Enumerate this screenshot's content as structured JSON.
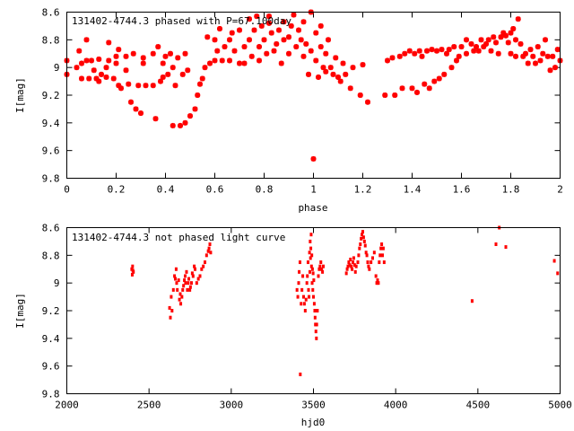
{
  "chart_data": [
    {
      "type": "scatter",
      "title": "131402-4744.3 phased with P=67.100day",
      "xlabel": "phase",
      "ylabel": "I[mag]",
      "xlim": [
        0,
        2
      ],
      "ylim": [
        9.8,
        8.6
      ],
      "y_inverted": true,
      "xticks": [
        "0",
        "0.2",
        "0.4",
        "0.6",
        "0.8",
        "1",
        "1.2",
        "1.4",
        "1.6",
        "1.8",
        "2"
      ],
      "yticks": [
        "8.6",
        "8.8",
        "9",
        "9.2",
        "9.4",
        "9.6",
        "9.8"
      ],
      "marker_color": "#ff0000",
      "points": [
        [
          0.0,
          8.95
        ],
        [
          0.0,
          9.05
        ],
        [
          0.04,
          9.0
        ],
        [
          0.05,
          8.88
        ],
        [
          0.06,
          8.97
        ],
        [
          0.06,
          9.08
        ],
        [
          0.08,
          8.95
        ],
        [
          0.08,
          8.8
        ],
        [
          0.09,
          9.08
        ],
        [
          0.1,
          8.95
        ],
        [
          0.11,
          9.02
        ],
        [
          0.12,
          9.08
        ],
        [
          0.13,
          8.94
        ],
        [
          0.13,
          9.1
        ],
        [
          0.14,
          9.05
        ],
        [
          0.16,
          9.0
        ],
        [
          0.16,
          9.07
        ],
        [
          0.17,
          8.82
        ],
        [
          0.17,
          8.95
        ],
        [
          0.19,
          9.08
        ],
        [
          0.2,
          8.97
        ],
        [
          0.2,
          8.92
        ],
        [
          0.21,
          8.87
        ],
        [
          0.21,
          9.13
        ],
        [
          0.22,
          9.15
        ],
        [
          0.24,
          8.92
        ],
        [
          0.24,
          9.02
        ],
        [
          0.25,
          9.12
        ],
        [
          0.26,
          9.25
        ],
        [
          0.27,
          8.9
        ],
        [
          0.28,
          9.3
        ],
        [
          0.29,
          9.13
        ],
        [
          0.3,
          9.33
        ],
        [
          0.31,
          8.93
        ],
        [
          0.31,
          8.97
        ],
        [
          0.32,
          9.13
        ],
        [
          0.35,
          8.9
        ],
        [
          0.35,
          9.13
        ],
        [
          0.36,
          9.37
        ],
        [
          0.37,
          8.85
        ],
        [
          0.38,
          9.1
        ],
        [
          0.39,
          8.97
        ],
        [
          0.39,
          9.07
        ],
        [
          0.4,
          8.92
        ],
        [
          0.41,
          9.05
        ],
        [
          0.42,
          8.9
        ],
        [
          0.43,
          9.0
        ],
        [
          0.43,
          9.42
        ],
        [
          0.44,
          9.13
        ],
        [
          0.45,
          8.93
        ],
        [
          0.46,
          9.42
        ],
        [
          0.47,
          9.05
        ],
        [
          0.48,
          8.9
        ],
        [
          0.48,
          9.4
        ],
        [
          0.49,
          9.02
        ],
        [
          0.5,
          9.35
        ],
        [
          0.52,
          9.3
        ],
        [
          0.53,
          9.2
        ],
        [
          0.54,
          9.12
        ],
        [
          0.55,
          9.08
        ],
        [
          0.56,
          9.0
        ],
        [
          0.57,
          8.78
        ],
        [
          0.58,
          8.97
        ],
        [
          0.6,
          8.8
        ],
        [
          0.6,
          8.95
        ],
        [
          0.61,
          8.88
        ],
        [
          0.62,
          8.72
        ],
        [
          0.63,
          8.95
        ],
        [
          0.64,
          8.85
        ],
        [
          0.66,
          8.8
        ],
        [
          0.66,
          8.95
        ],
        [
          0.67,
          8.75
        ],
        [
          0.68,
          8.88
        ],
        [
          0.7,
          8.97
        ],
        [
          0.7,
          8.73
        ],
        [
          0.72,
          8.85
        ],
        [
          0.72,
          8.97
        ],
        [
          0.74,
          8.65
        ],
        [
          0.74,
          8.8
        ],
        [
          0.75,
          8.92
        ],
        [
          0.76,
          8.73
        ],
        [
          0.77,
          8.63
        ],
        [
          0.78,
          8.85
        ],
        [
          0.78,
          8.95
        ],
        [
          0.79,
          8.7
        ],
        [
          0.8,
          8.8
        ],
        [
          0.81,
          8.9
        ],
        [
          0.82,
          8.63
        ],
        [
          0.82,
          8.68
        ],
        [
          0.83,
          8.75
        ],
        [
          0.84,
          8.88
        ],
        [
          0.85,
          8.83
        ],
        [
          0.86,
          8.73
        ],
        [
          0.87,
          8.97
        ],
        [
          0.88,
          8.8
        ],
        [
          0.88,
          8.67
        ],
        [
          0.9,
          8.9
        ],
        [
          0.9,
          8.78
        ],
        [
          0.91,
          8.7
        ],
        [
          0.92,
          8.62
        ],
        [
          0.93,
          8.85
        ],
        [
          0.94,
          8.73
        ],
        [
          0.95,
          8.8
        ],
        [
          0.96,
          8.92
        ],
        [
          0.96,
          8.67
        ],
        [
          0.97,
          8.83
        ],
        [
          0.98,
          9.05
        ],
        [
          0.99,
          8.88
        ],
        [
          0.99,
          8.6
        ],
        [
          1.0,
          9.66
        ],
        [
          1.01,
          8.75
        ],
        [
          1.01,
          8.95
        ],
        [
          1.02,
          9.07
        ],
        [
          1.03,
          8.85
        ],
        [
          1.03,
          8.7
        ],
        [
          1.04,
          9.0
        ],
        [
          1.05,
          8.9
        ],
        [
          1.05,
          9.03
        ],
        [
          1.06,
          8.8
        ],
        [
          1.07,
          9.0
        ],
        [
          1.08,
          9.05
        ],
        [
          1.09,
          8.93
        ],
        [
          1.1,
          9.07
        ],
        [
          1.11,
          9.1
        ],
        [
          1.12,
          8.97
        ],
        [
          1.13,
          9.05
        ],
        [
          1.15,
          9.15
        ],
        [
          1.16,
          9.0
        ],
        [
          1.19,
          9.2
        ],
        [
          1.2,
          8.98
        ],
        [
          1.22,
          9.25
        ],
        [
          1.29,
          9.2
        ],
        [
          1.3,
          8.95
        ],
        [
          1.32,
          8.93
        ],
        [
          1.33,
          9.2
        ],
        [
          1.35,
          8.92
        ],
        [
          1.36,
          9.15
        ],
        [
          1.37,
          8.9
        ],
        [
          1.39,
          8.88
        ],
        [
          1.4,
          9.15
        ],
        [
          1.41,
          8.9
        ],
        [
          1.42,
          9.18
        ],
        [
          1.43,
          8.88
        ],
        [
          1.44,
          8.92
        ],
        [
          1.45,
          9.12
        ],
        [
          1.46,
          8.88
        ],
        [
          1.47,
          9.15
        ],
        [
          1.48,
          8.87
        ],
        [
          1.49,
          9.1
        ],
        [
          1.5,
          8.88
        ],
        [
          1.51,
          9.08
        ],
        [
          1.52,
          8.87
        ],
        [
          1.53,
          9.05
        ],
        [
          1.54,
          8.9
        ],
        [
          1.55,
          8.87
        ],
        [
          1.56,
          9.0
        ],
        [
          1.57,
          8.85
        ],
        [
          1.58,
          8.95
        ],
        [
          1.59,
          8.92
        ],
        [
          1.6,
          8.85
        ],
        [
          1.62,
          8.8
        ],
        [
          1.62,
          8.9
        ],
        [
          1.64,
          8.83
        ],
        [
          1.65,
          8.88
        ],
        [
          1.66,
          8.85
        ],
        [
          1.67,
          8.88
        ],
        [
          1.68,
          8.8
        ],
        [
          1.69,
          8.85
        ],
        [
          1.7,
          8.83
        ],
        [
          1.71,
          8.8
        ],
        [
          1.72,
          8.88
        ],
        [
          1.73,
          8.78
        ],
        [
          1.74,
          8.82
        ],
        [
          1.75,
          8.9
        ],
        [
          1.76,
          8.78
        ],
        [
          1.77,
          8.75
        ],
        [
          1.78,
          8.77
        ],
        [
          1.79,
          8.82
        ],
        [
          1.8,
          8.75
        ],
        [
          1.8,
          8.9
        ],
        [
          1.81,
          8.72
        ],
        [
          1.82,
          8.8
        ],
        [
          1.82,
          8.92
        ],
        [
          1.83,
          8.65
        ],
        [
          1.84,
          8.83
        ],
        [
          1.85,
          8.92
        ],
        [
          1.86,
          8.9
        ],
        [
          1.87,
          8.97
        ],
        [
          1.88,
          8.87
        ],
        [
          1.89,
          8.92
        ],
        [
          1.9,
          8.97
        ],
        [
          1.91,
          8.85
        ],
        [
          1.92,
          8.95
        ],
        [
          1.93,
          8.9
        ],
        [
          1.94,
          8.8
        ],
        [
          1.95,
          8.92
        ],
        [
          1.96,
          9.02
        ],
        [
          1.97,
          8.92
        ],
        [
          1.98,
          9.0
        ],
        [
          1.99,
          8.87
        ],
        [
          2.0,
          8.95
        ]
      ]
    },
    {
      "type": "scatter",
      "title": "131402-4744.3 not phased light curve",
      "xlabel": "hjd0",
      "ylabel": "I[mag]",
      "xlim": [
        2000,
        5000
      ],
      "ylim": [
        9.8,
        8.6
      ],
      "y_inverted": true,
      "xticks": [
        "2000",
        "2500",
        "3000",
        "3500",
        "4000",
        "4500",
        "5000"
      ],
      "yticks": [
        "8.6",
        "8.8",
        "9",
        "9.2",
        "9.4",
        "9.6",
        "9.8"
      ],
      "marker_color": "#ff0000",
      "points": [
        [
          2395,
          8.9
        ],
        [
          2400,
          8.88
        ],
        [
          2405,
          8.92
        ],
        [
          2398,
          8.94
        ],
        [
          2402,
          8.91
        ],
        [
          2625,
          9.18
        ],
        [
          2630,
          9.25
        ],
        [
          2635,
          9.1
        ],
        [
          2640,
          9.2
        ],
        [
          2648,
          9.05
        ],
        [
          2655,
          8.95
        ],
        [
          2660,
          8.97
        ],
        [
          2665,
          8.9
        ],
        [
          2668,
          9.0
        ],
        [
          2672,
          9.05
        ],
        [
          2680,
          8.98
        ],
        [
          2685,
          9.12
        ],
        [
          2690,
          9.08
        ],
        [
          2693,
          9.15
        ],
        [
          2700,
          9.1
        ],
        [
          2705,
          9.05
        ],
        [
          2710,
          9.02
        ],
        [
          2715,
          8.98
        ],
        [
          2720,
          8.95
        ],
        [
          2722,
          9.0
        ],
        [
          2728,
          8.92
        ],
        [
          2733,
          9.05
        ],
        [
          2738,
          9.0
        ],
        [
          2742,
          8.97
        ],
        [
          2748,
          9.05
        ],
        [
          2752,
          9.03
        ],
        [
          2758,
          9.0
        ],
        [
          2763,
          8.93
        ],
        [
          2768,
          8.95
        ],
        [
          2775,
          8.88
        ],
        [
          2780,
          8.9
        ],
        [
          2790,
          9.0
        ],
        [
          2800,
          8.97
        ],
        [
          2810,
          8.95
        ],
        [
          2820,
          8.9
        ],
        [
          2830,
          8.88
        ],
        [
          2840,
          8.85
        ],
        [
          2850,
          8.8
        ],
        [
          2860,
          8.77
        ],
        [
          2865,
          8.75
        ],
        [
          2870,
          8.72
        ],
        [
          2875,
          8.78
        ],
        [
          3400,
          9.05
        ],
        [
          3405,
          9.1
        ],
        [
          3410,
          9.0
        ],
        [
          3413,
          8.92
        ],
        [
          3418,
          8.85
        ],
        [
          3420,
          9.66
        ],
        [
          3425,
          9.15
        ],
        [
          3430,
          9.05
        ],
        [
          3435,
          8.95
        ],
        [
          3440,
          9.1
        ],
        [
          3445,
          9.15
        ],
        [
          3450,
          9.2
        ],
        [
          3455,
          9.12
        ],
        [
          3460,
          9.0
        ],
        [
          3463,
          8.95
        ],
        [
          3467,
          8.85
        ],
        [
          3470,
          9.05
        ],
        [
          3473,
          9.1
        ],
        [
          3476,
          8.78
        ],
        [
          3478,
          8.92
        ],
        [
          3480,
          8.7
        ],
        [
          3482,
          8.82
        ],
        [
          3484,
          8.75
        ],
        [
          3486,
          8.65
        ],
        [
          3488,
          8.88
        ],
        [
          3490,
          8.8
        ],
        [
          3492,
          9.0
        ],
        [
          3494,
          8.9
        ],
        [
          3496,
          9.05
        ],
        [
          3498,
          8.93
        ],
        [
          3500,
          9.1
        ],
        [
          3502,
          8.98
        ],
        [
          3505,
          9.15
        ],
        [
          3508,
          9.2
        ],
        [
          3510,
          9.25
        ],
        [
          3512,
          9.3
        ],
        [
          3515,
          9.35
        ],
        [
          3518,
          9.4
        ],
        [
          3520,
          9.3
        ],
        [
          3524,
          9.2
        ],
        [
          3530,
          8.95
        ],
        [
          3535,
          8.9
        ],
        [
          3540,
          8.88
        ],
        [
          3545,
          8.85
        ],
        [
          3550,
          8.9
        ],
        [
          3555,
          8.92
        ],
        [
          3560,
          8.88
        ],
        [
          3700,
          8.93
        ],
        [
          3705,
          8.9
        ],
        [
          3710,
          8.88
        ],
        [
          3715,
          8.85
        ],
        [
          3720,
          8.87
        ],
        [
          3725,
          8.83
        ],
        [
          3730,
          8.88
        ],
        [
          3735,
          8.9
        ],
        [
          3740,
          8.85
        ],
        [
          3745,
          8.82
        ],
        [
          3750,
          8.87
        ],
        [
          3755,
          8.92
        ],
        [
          3760,
          8.88
        ],
        [
          3770,
          8.85
        ],
        [
          3775,
          8.8
        ],
        [
          3780,
          8.75
        ],
        [
          3785,
          8.72
        ],
        [
          3790,
          8.68
        ],
        [
          3795,
          8.65
        ],
        [
          3800,
          8.63
        ],
        [
          3805,
          8.67
        ],
        [
          3810,
          8.7
        ],
        [
          3815,
          8.73
        ],
        [
          3820,
          8.78
        ],
        [
          3825,
          8.8
        ],
        [
          3830,
          8.85
        ],
        [
          3835,
          8.88
        ],
        [
          3840,
          8.9
        ],
        [
          3850,
          8.85
        ],
        [
          3860,
          8.82
        ],
        [
          3870,
          8.78
        ],
        [
          3880,
          8.95
        ],
        [
          3885,
          9.0
        ],
        [
          3890,
          8.98
        ],
        [
          3895,
          9.0
        ],
        [
          3900,
          8.85
        ],
        [
          3905,
          8.8
        ],
        [
          3910,
          8.75
        ],
        [
          3915,
          8.72
        ],
        [
          3920,
          8.8
        ],
        [
          3925,
          8.75
        ],
        [
          3930,
          8.85
        ],
        [
          4465,
          9.13
        ],
        [
          4610,
          8.72
        ],
        [
          4630,
          8.6
        ],
        [
          4670,
          8.74
        ],
        [
          4965,
          8.84
        ],
        [
          4985,
          8.93
        ]
      ]
    }
  ]
}
